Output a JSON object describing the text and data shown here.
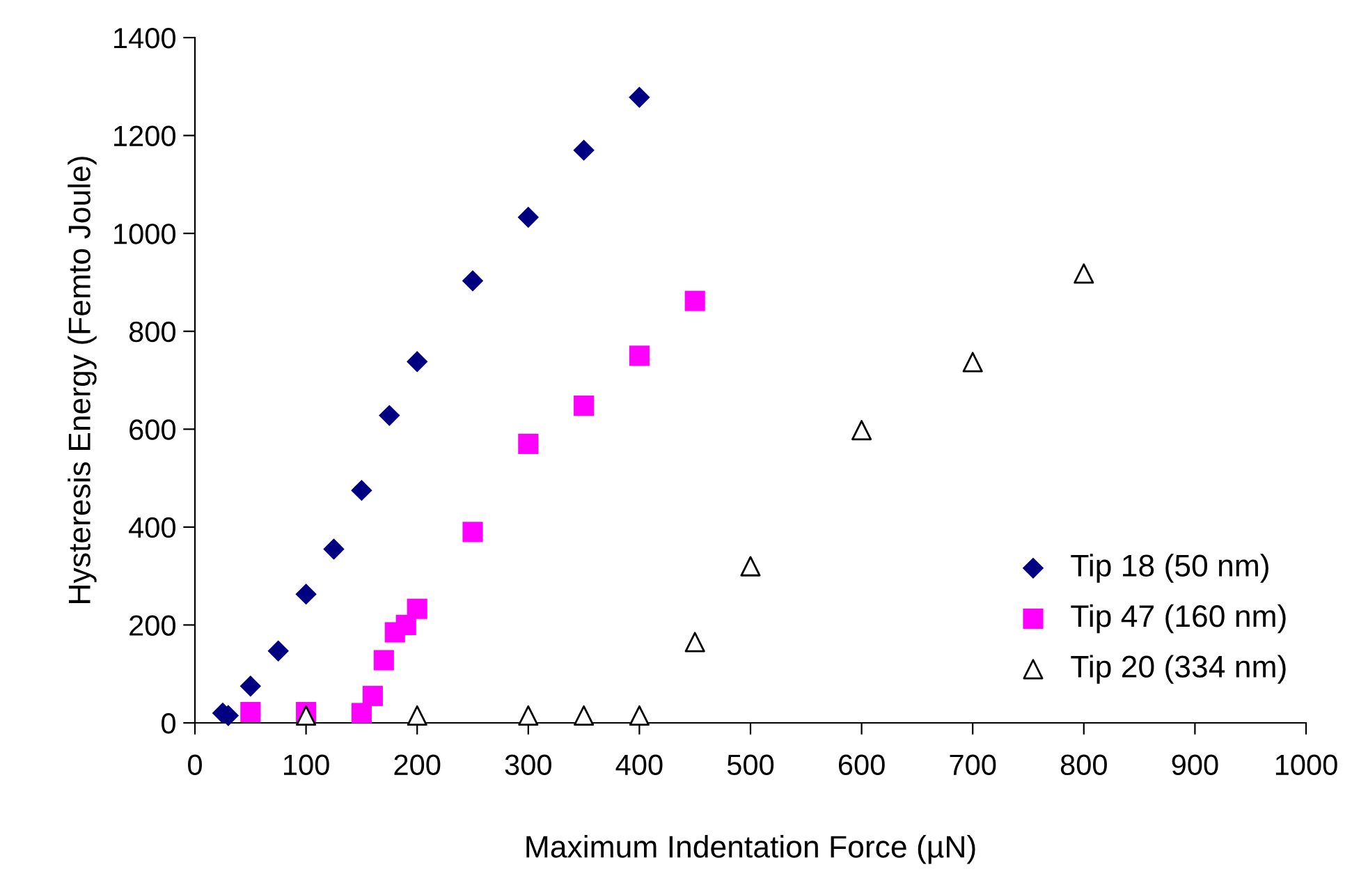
{
  "chart_data": {
    "type": "scatter",
    "xlabel": "Maximum Indentation Force (µN)",
    "ylabel": "Hysteresis Energy (Femto Joule)",
    "xlim": [
      0,
      1000
    ],
    "xticks": [
      0,
      100,
      200,
      300,
      400,
      500,
      600,
      700,
      800,
      900,
      1000
    ],
    "ylim": [
      0,
      1400
    ],
    "yticks": [
      0,
      200,
      400,
      600,
      800,
      1000,
      1200,
      1400
    ],
    "grid": false,
    "legend": "bottom right",
    "series": [
      {
        "name": "Tip 18 (50 nm)",
        "color": "#000080",
        "marker": "diamond",
        "x": [
          25,
          30,
          50,
          75,
          100,
          125,
          150,
          175,
          200,
          250,
          300,
          350,
          400
        ],
        "values": [
          20,
          15,
          75,
          147,
          263,
          355,
          475,
          628,
          738,
          903,
          1033,
          1170,
          1278
        ]
      },
      {
        "name": "Tip 47 (160 nm)",
        "color": "#ff00ff",
        "marker": "square",
        "x": [
          50,
          100,
          150,
          160,
          170,
          180,
          190,
          200,
          250,
          300,
          350,
          400,
          450
        ],
        "values": [
          22,
          22,
          20,
          55,
          128,
          185,
          200,
          233,
          390,
          570,
          648,
          750,
          862
        ]
      },
      {
        "name": "Tip 20 (334 nm)",
        "color": "#000000",
        "marker": "triangle",
        "x": [
          100,
          200,
          300,
          350,
          400,
          450,
          500,
          600,
          700,
          800
        ],
        "values": [
          15,
          15,
          15,
          15,
          15,
          165,
          320,
          598,
          737,
          918
        ]
      }
    ]
  }
}
